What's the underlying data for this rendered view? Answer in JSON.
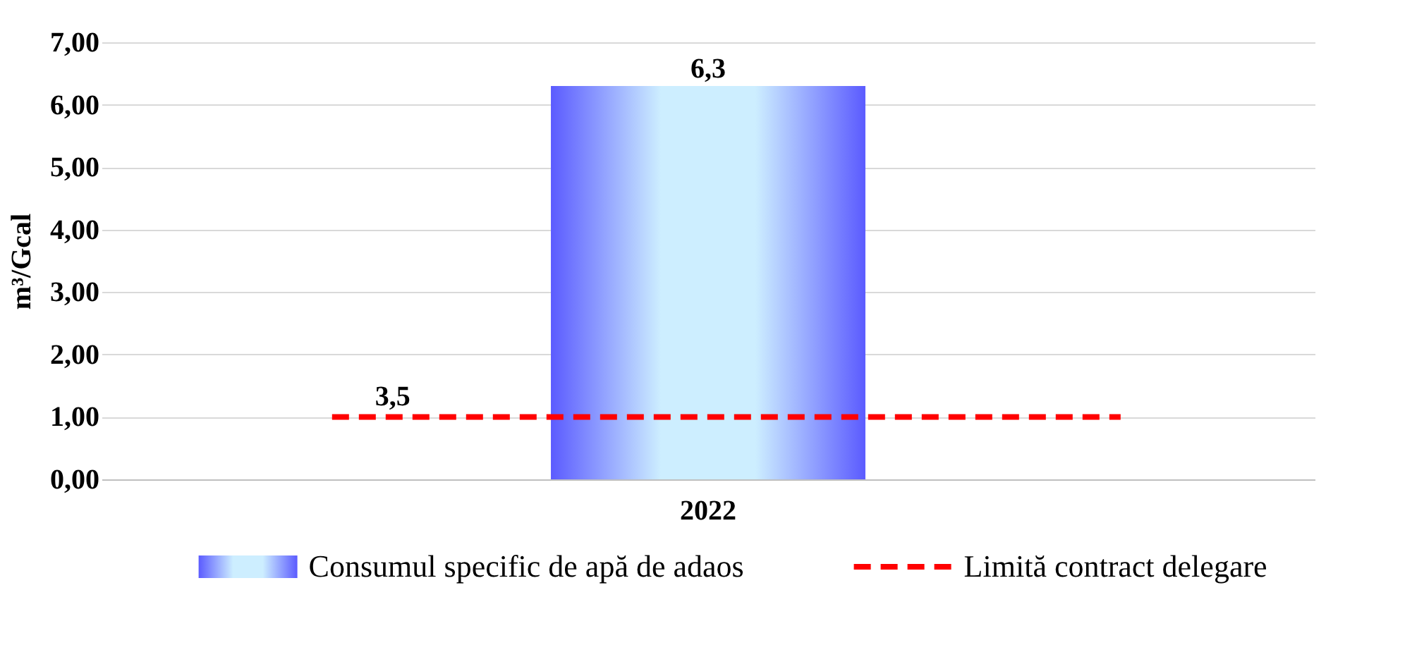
{
  "chart_data": {
    "type": "bar",
    "ylabel": "m³/Gcal",
    "categories": [
      "2022"
    ],
    "series": [
      {
        "name": "Consumul specific de apă de adaos",
        "color": "#5b5bff",
        "values": [
          6.3
        ],
        "value_labels": [
          "6,3"
        ]
      }
    ],
    "ref_lines": [
      {
        "axis": "y",
        "value": 1,
        "label": "Limită contract delegare",
        "color": "#ff0000",
        "line_style": "dashed"
      }
    ],
    "annotations": [
      {
        "text": "3,5",
        "y": 1
      }
    ],
    "ylim": [
      0,
      7
    ],
    "yticks": [
      {
        "value": 0,
        "label": "0,00"
      },
      {
        "value": 1,
        "label": "1,00"
      },
      {
        "value": 2,
        "label": "2,00"
      },
      {
        "value": 3,
        "label": "3,00"
      },
      {
        "value": 4,
        "label": "4,00"
      },
      {
        "value": 5,
        "label": "5,00"
      },
      {
        "value": 6,
        "label": "6,00"
      },
      {
        "value": 7,
        "label": "7,00"
      }
    ],
    "grid": "y",
    "legend": "bottom"
  }
}
